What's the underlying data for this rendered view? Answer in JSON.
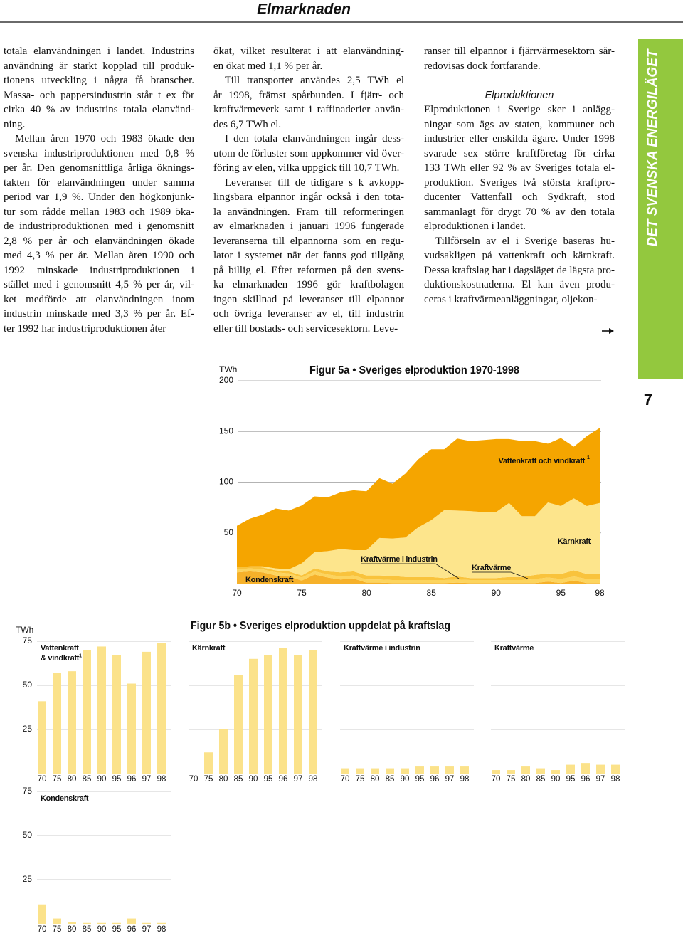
{
  "header": {
    "title": "Elmarknaden"
  },
  "sidebar": {
    "section": "DET SVENSKA ENERGILÄGET",
    "page_number": "7"
  },
  "text_columns": [
    {
      "paragraphs": [
        [
          "totala elanvändningen i landet. Industrins",
          "användning är starkt kopplad till produk-",
          "tionens utveckling i några få branscher.",
          "Massa- och pappersindustrin står t ex för",
          "cirka 40 % av industrins totala elanvänd-",
          "ning."
        ],
        [
          "Mellan åren 1970 och 1983 ökade den",
          "svenska industriproduktionen med 0,8 %",
          "per år. Den genomsnittliga årliga öknings-",
          "takten för elanvändningen under samma",
          "period var 1,9 %. Under den högkonjunk-",
          "tur som rådde mellan 1983 och 1989 öka-",
          "de industriproduktionen med i genomsnitt",
          "2,8 % per år och elanvändningen ökade",
          "med 4,3 % per år. Mellan åren 1990 och",
          "1992 minskade industriproduktionen i",
          "stället med i genomsnitt 4,5 % per år, vil-",
          "ket medförde att elanvändningen inom",
          "industrin minskade med 3,3 % per år. Ef-",
          "ter 1992 har industriproduktionen åter"
        ]
      ]
    },
    {
      "paragraphs": [
        [
          "ökat, vilket resulterat i att elanvändning-",
          "en ökat med 1,1 % per år."
        ],
        [
          "Till transporter användes 2,5 TWh el",
          "år 1998, främst spårbunden. I fjärr- och",
          "kraftvärmeverk samt i raffinaderier använ-",
          "des 6,7 TWh el."
        ],
        [
          "I den totala elanvändningen ingår dess-",
          "utom de förluster som uppkommer vid över-",
          "föring av elen, vilka uppgick till 10,7 TWh."
        ],
        [
          "Leveranser till de tidigare s k avkopp-",
          "lingsbara elpannor ingår också i den tota-",
          "la användningen. Fram till reformeringen",
          "av elmarknaden i januari 1996 fungerade",
          "leveranserna till elpannorna som en regu-",
          "lator i systemet när det fanns god tillgång",
          "på billig el. Efter reformen på den svens-",
          "ka elmarknaden 1996 gör kraftbolagen",
          "ingen skillnad på leveranser till elpannor",
          "och övriga leveranser av el, till industrin",
          "eller till bostads- och servicesektorn. Leve-"
        ]
      ]
    },
    {
      "paragraphs": [
        [
          "ranser till elpannor i fjärrvärmesektorn sär-",
          "redovisas dock fortfarande."
        ]
      ],
      "heading": "Elproduktionen",
      "paragraphs_after_heading": [
        [
          "Elproduktionen i Sverige sker i anlägg-",
          "ningar som ägs av staten, kommuner och",
          "industrier eller enskilda ägare. Under 1998",
          "svarade sex större kraftföretag för cirka",
          "133 TWh eller 92 % av Sveriges totala el-",
          "produktion. Sveriges två största kraftpro-",
          "ducenter Vattenfall och Sydkraft, stod",
          "sammanlagt för drygt 70 % av den totala",
          "elproduktionen i landet."
        ],
        [
          "Tillförseln av el i Sverige baseras hu-",
          "vudsakligen på vattenkraft och kärnkraft.",
          "Dessa kraftslag har i dagsläget de lägsta pro-",
          "duktionskostnaderna. El kan även produ-",
          "ceras i kraftvärmeanläggningar, oljekon-"
        ]
      ]
    }
  ],
  "chart_data": [
    {
      "type": "area",
      "stacked": true,
      "title": "Figur 5a • Sveriges elproduktion 1970-1998",
      "ylabel": "TWh",
      "x": [
        70,
        71,
        72,
        73,
        74,
        75,
        76,
        77,
        78,
        79,
        80,
        81,
        82,
        83,
        84,
        85,
        86,
        87,
        88,
        89,
        90,
        91,
        92,
        93,
        94,
        95,
        96,
        97,
        98
      ],
      "xlim": [
        70,
        98
      ],
      "xticks": [
        70,
        75,
        80,
        85,
        90,
        95,
        98
      ],
      "ylim": [
        0,
        200
      ],
      "yticks": [
        50,
        100,
        150,
        200
      ],
      "grid": true,
      "series": [
        {
          "name": "Kondenskraft",
          "color": "#f6b12a",
          "values": [
            11,
            12,
            11,
            8,
            7,
            3,
            9,
            6,
            4,
            5,
            1,
            1,
            0.5,
            0.5,
            0.5,
            0.5,
            0.5,
            1,
            0.5,
            0.5,
            0.5,
            0.5,
            0.5,
            0.5,
            2,
            0.5,
            3,
            0.5,
            0.5
          ]
        },
        {
          "name": "Kraftvärme i industrin",
          "color": "#fcd45e",
          "values": [
            3,
            3,
            3,
            3,
            3,
            3,
            3,
            3,
            3,
            3,
            3,
            3,
            3,
            3,
            3,
            3,
            3,
            3,
            3,
            3,
            3,
            3,
            3,
            4,
            4,
            4,
            4,
            4,
            4
          ]
        },
        {
          "name": "Kraftvärme",
          "color": "#f9c33c",
          "values": [
            2,
            2,
            2,
            2,
            2,
            2,
            3,
            3,
            4,
            4,
            4,
            4,
            4,
            3,
            3,
            3,
            2,
            3,
            2,
            2,
            2,
            3,
            3,
            4,
            4,
            5,
            6,
            5,
            5
          ]
        },
        {
          "name": "Kärnkraft",
          "color": "#fde58c",
          "values": [
            0,
            0,
            1,
            2,
            2,
            12,
            16,
            20,
            23,
            21,
            25,
            37,
            37,
            39,
            49,
            56,
            67,
            65,
            66,
            65,
            65,
            73,
            60,
            58,
            70,
            67,
            71,
            67,
            70
          ]
        },
        {
          "name": "Vattenkraft och vindkraft",
          "footnote_mark": "1",
          "color": "#f5a500",
          "values": [
            41,
            47,
            51,
            59,
            58,
            57,
            55,
            53,
            56,
            59,
            58,
            59,
            54,
            63,
            67,
            70,
            60,
            71,
            69,
            71,
            72,
            63,
            74,
            74,
            58,
            67,
            51,
            69,
            74
          ]
        }
      ]
    },
    {
      "type": "bar",
      "title": "Figur 5b • Sveriges elproduktion uppdelat på kraftslag",
      "ylabel": "TWh",
      "categories": [
        "70",
        "75",
        "80",
        "85",
        "90",
        "95",
        "96",
        "97",
        "98"
      ],
      "ylim": [
        0,
        76
      ],
      "yticks": [
        25,
        50,
        75
      ],
      "grid": true,
      "color": "#fbe28a",
      "series": [
        {
          "name": "Vattenkraft & vindkraft",
          "footnote_mark": "1",
          "values": [
            41,
            57,
            58,
            70,
            72,
            67,
            51,
            69,
            74
          ]
        },
        {
          "name": "Kärnkraft",
          "values": [
            0,
            12,
            25,
            56,
            65,
            67,
            71,
            67,
            70
          ]
        },
        {
          "name": "Kraftvärme i industrin",
          "values": [
            3,
            3,
            3,
            3,
            3,
            4,
            4,
            4,
            4
          ]
        },
        {
          "name": "Kraftvärme",
          "values": [
            2,
            2,
            4,
            3,
            2,
            5,
            6,
            5,
            5
          ]
        },
        {
          "name": "Kondenskraft",
          "values": [
            11,
            3,
            1,
            0.5,
            0.5,
            0.5,
            3,
            0.5,
            0.5
          ]
        }
      ]
    }
  ]
}
